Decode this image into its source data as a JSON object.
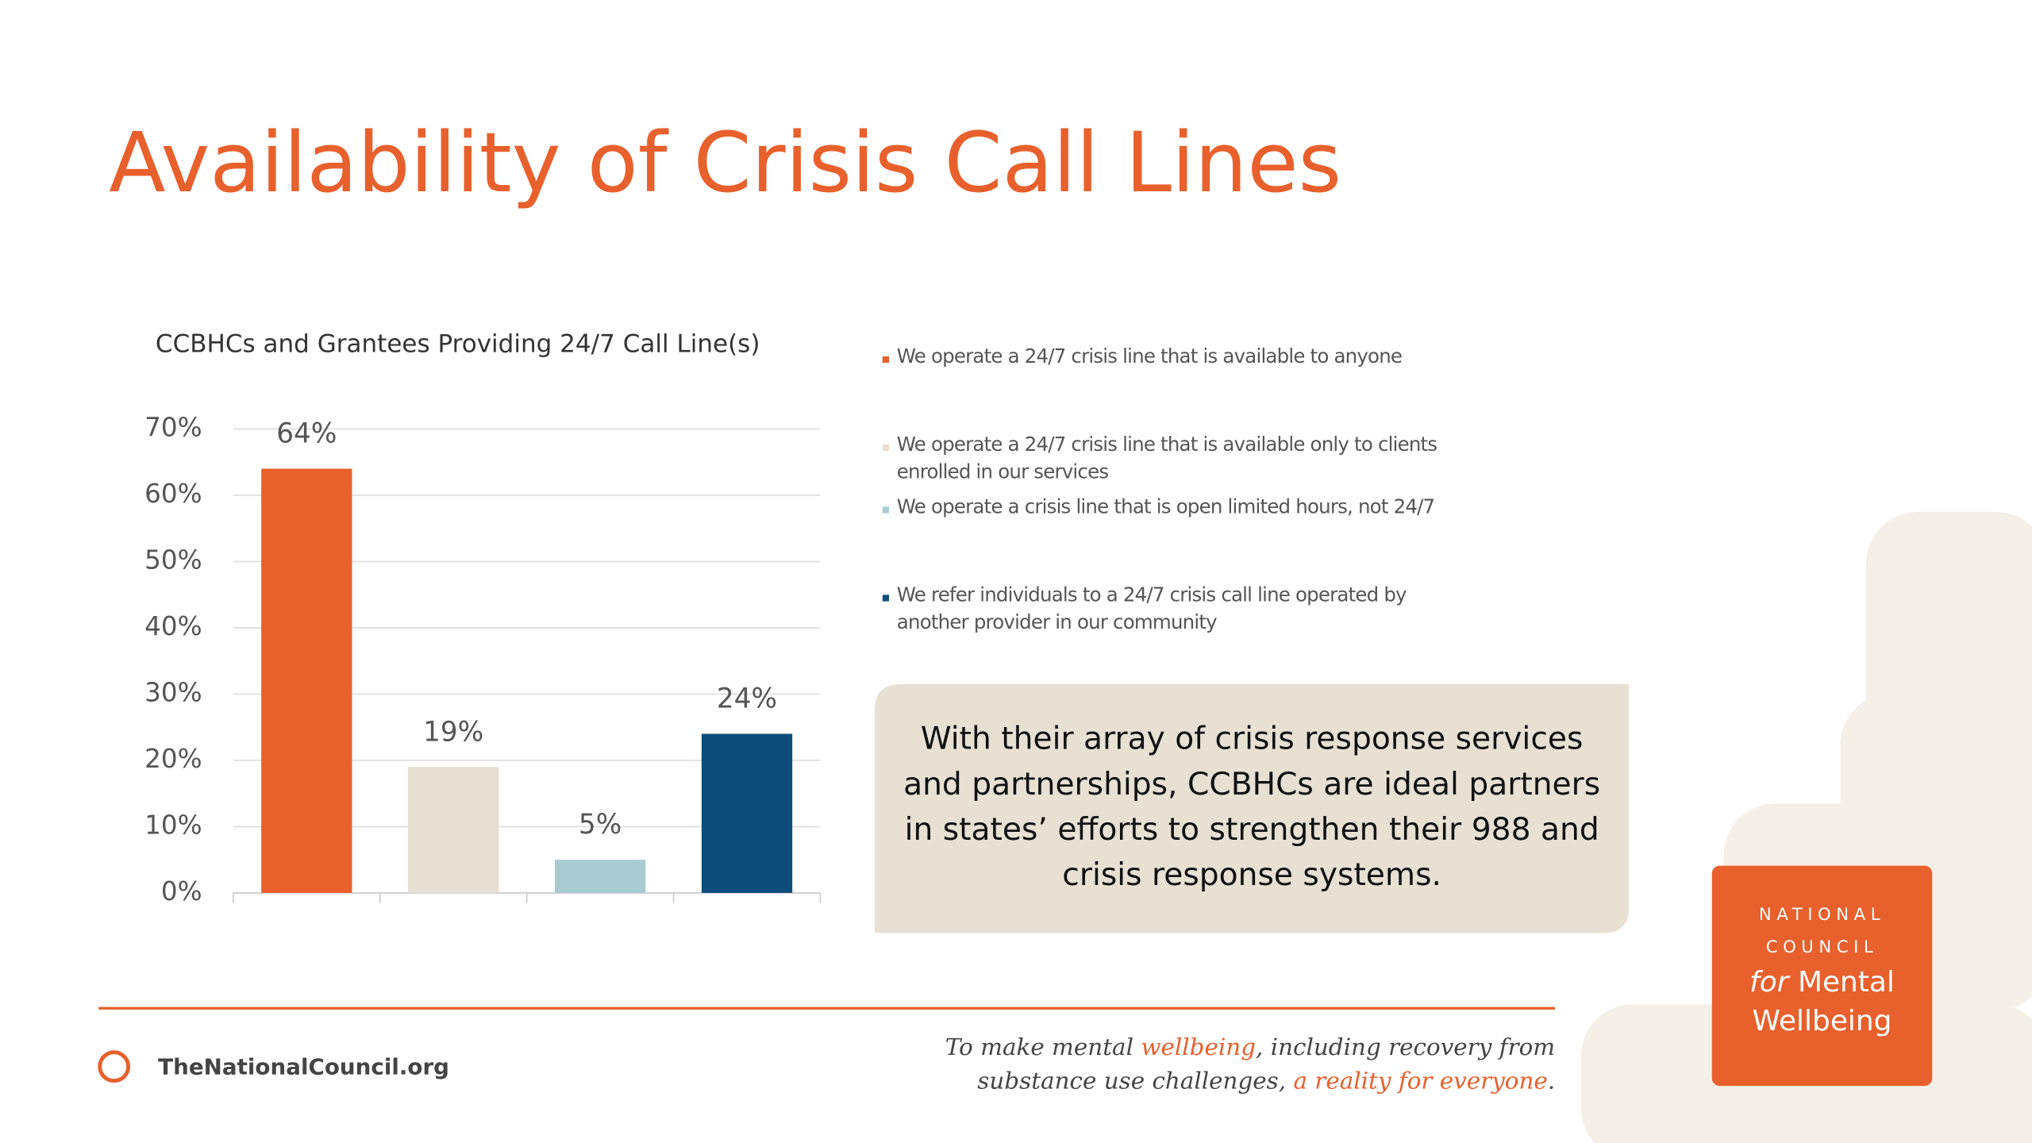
{
  "chart_data": {
    "type": "bar",
    "title": "Availability of Crisis Call Lines",
    "subtitle": "CCBHCs and Grantees Providing 24/7 Call Line(s)",
    "categories": [
      "We operate a 24/7 crisis line that is available to anyone",
      "We operate a 24/7 crisis line that is available only to clients enrolled in our services",
      "We operate a crisis line that is open limited hours, not 24/7",
      "We refer individuals to a 24/7 crisis call line operated by another provider in our community"
    ],
    "values": [
      64,
      19,
      5,
      24
    ],
    "value_labels": [
      "64%",
      "19%",
      "5%",
      "24%"
    ],
    "colors": [
      "#e8602c",
      "#e6e0d2",
      "#a9ccd3",
      "#0d4d7a"
    ],
    "ylim": [
      0,
      70
    ],
    "yticks": [
      {
        "value": 0,
        "label": "0%"
      },
      {
        "value": 10,
        "label": "10%"
      },
      {
        "value": 20,
        "label": "20%"
      },
      {
        "value": 30,
        "label": "30%"
      },
      {
        "value": 40,
        "label": "40%"
      },
      {
        "value": 50,
        "label": "50%"
      },
      {
        "value": 60,
        "label": "60%"
      },
      {
        "value": 70,
        "label": "70%"
      }
    ],
    "grid": true
  },
  "callout": "With their array of crisis response services and partnerships, CCBHCs are ideal partners in states’ efforts to strengthen their 988 and crisis response systems.",
  "footer": {
    "website": "TheNationalCouncil.org",
    "tagline": [
      "To make mental ",
      "wellbeing",
      ", including recovery from substance use challenges, ",
      "a reality for everyone",
      "."
    ]
  },
  "logo": [
    "NATIONAL",
    "COUNCIL",
    "for",
    "Mental",
    "Wellbeing"
  ]
}
